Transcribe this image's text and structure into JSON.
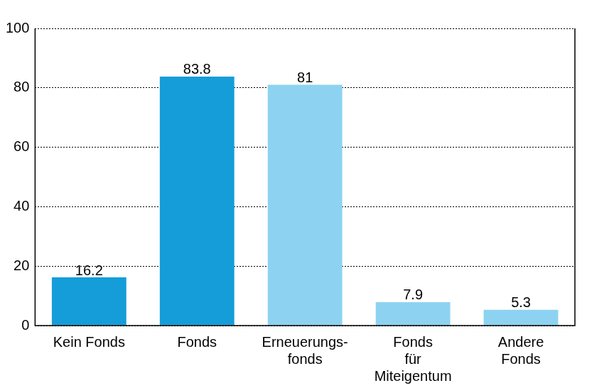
{
  "chart_data": {
    "type": "bar",
    "categories": [
      "Kein Fonds",
      "Fonds",
      "Erneuerungs-\nfonds",
      "Fonds\nfür\nMiteigentum",
      "Andere\nFonds"
    ],
    "values": [
      16.2,
      83.8,
      81,
      7.9,
      5.3
    ],
    "colors": [
      "#149dd9",
      "#149dd9",
      "#8dd3f1",
      "#8dd3f1",
      "#8dd3f1"
    ],
    "ylim": [
      0,
      100
    ],
    "yticks": [
      0,
      20,
      40,
      60,
      80,
      100
    ],
    "grid": true,
    "data_labels": true
  }
}
